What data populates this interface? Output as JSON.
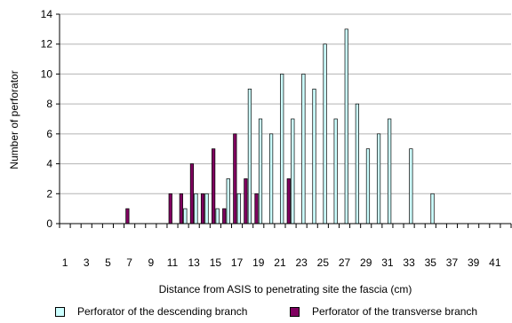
{
  "chart_data": {
    "type": "bar",
    "xlabel": "Distance from ASIS to penetrating site the fascia (cm)",
    "ylabel": "Number of perforator",
    "ylim": [
      0,
      14
    ],
    "yticks": [
      0,
      2,
      4,
      6,
      8,
      10,
      12,
      14
    ],
    "xlim": [
      0,
      42
    ],
    "xticks": [
      1,
      3,
      5,
      7,
      9,
      11,
      13,
      15,
      17,
      19,
      21,
      23,
      25,
      27,
      29,
      31,
      33,
      35,
      37,
      39,
      41
    ],
    "grid": "horizontal",
    "legend_position": "bottom",
    "series": [
      {
        "name": "Perforator of the descending branch",
        "color": "#ccffff",
        "x": [
          12,
          13,
          14,
          15,
          16,
          17,
          18,
          19,
          20,
          21,
          22,
          23,
          24,
          25,
          26,
          27,
          28,
          29,
          30,
          31,
          33,
          35
        ],
        "values": [
          1,
          2,
          2,
          1,
          3,
          2,
          9,
          7,
          6,
          10,
          7,
          10,
          9,
          12,
          7,
          13,
          8,
          5,
          6,
          7,
          5,
          2
        ]
      },
      {
        "name": "Perforator of the transverse branch",
        "color": "#800060",
        "x": [
          7,
          11,
          12,
          13,
          14,
          15,
          16,
          17,
          18,
          19,
          22
        ],
        "values": [
          1,
          2,
          2,
          4,
          2,
          5,
          1,
          6,
          3,
          2,
          3
        ]
      }
    ]
  }
}
